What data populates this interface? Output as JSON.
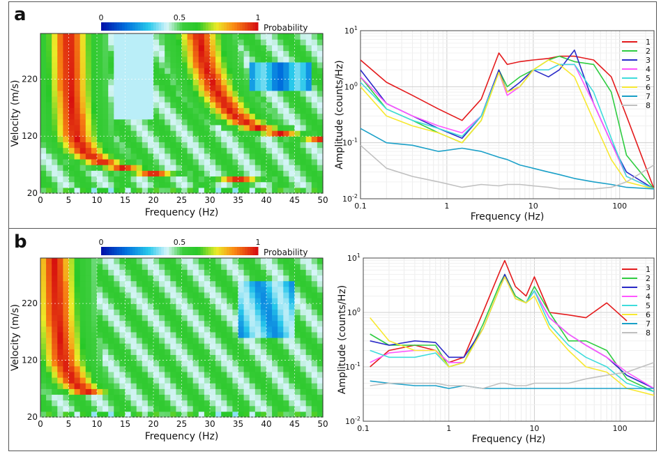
{
  "panels": [
    {
      "label": "a",
      "heatmap": {
        "colorbar": {
          "ticks": [
            "0",
            "0.5",
            "1"
          ],
          "title": "Probability"
        },
        "xlabel": "Frequency (Hz)",
        "ylabel": "Velocity (m/s)",
        "xticks": [
          "0",
          "5",
          "10",
          "15",
          "20",
          "25",
          "30",
          "35",
          "40",
          "45",
          "50"
        ],
        "yticks": [
          "20",
          "120",
          "220"
        ]
      },
      "spectrum": {
        "xlabel": "Frequency (Hz)",
        "ylabel": "Amplitude (counts/Hz)",
        "xticks": [
          "0.1",
          "1",
          "10",
          "100"
        ],
        "yticks": [
          "10-2",
          "10-1",
          "100",
          "101"
        ],
        "legend": [
          "1",
          "2",
          "3",
          "4",
          "5",
          "6",
          "7",
          "8"
        ]
      }
    },
    {
      "label": "b",
      "heatmap": {
        "colorbar": {
          "ticks": [
            "0",
            "0.5",
            "1"
          ],
          "title": "Probability"
        },
        "xlabel": "Frequency (Hz)",
        "ylabel": "Velocity (m/s)",
        "xticks": [
          "0",
          "5",
          "10",
          "15",
          "20",
          "25",
          "30",
          "35",
          "40",
          "45",
          "50"
        ],
        "yticks": [
          "20",
          "120",
          "220"
        ]
      },
      "spectrum": {
        "xlabel": "Frequency (Hz)",
        "ylabel": "Amplitude (counts/Hz)",
        "xticks": [
          "0.1",
          "1",
          "10",
          "100"
        ],
        "yticks": [
          "10-2",
          "10-1",
          "100",
          "101"
        ],
        "legend": [
          "1",
          "2",
          "3",
          "4",
          "5",
          "6",
          "7",
          "8"
        ]
      }
    }
  ],
  "chart_data": [
    {
      "type": "heatmap",
      "panel": "a",
      "xlabel": "Frequency (Hz)",
      "ylabel": "Velocity (m/s)",
      "xlim": [
        0,
        50
      ],
      "ylim": [
        20,
        300
      ],
      "colorbar_range": [
        0,
        1
      ],
      "colorbar_label": "Probability",
      "high_probability_ridges": [
        {
          "velocity": [
            300,
            200,
            120,
            90,
            70,
            55,
            45,
            40
          ],
          "frequency": [
            5,
            5.3,
            6.2,
            8,
            12,
            20,
            35,
            50
          ]
        },
        {
          "velocity": [
            300,
            250,
            200,
            160,
            140,
            130,
            120,
            115
          ],
          "frequency": [
            28,
            29,
            31,
            34,
            37,
            40,
            45,
            50
          ]
        }
      ]
    },
    {
      "type": "line",
      "panel": "a",
      "xlabel": "Frequency (Hz)",
      "ylabel": "Amplitude (counts/Hz)",
      "xscale": "log",
      "yscale": "log",
      "xlim": [
        0.1,
        250
      ],
      "ylim": [
        0.01,
        10
      ],
      "legend_position": "top-right",
      "x": [
        0.1,
        0.2,
        0.4,
        0.8,
        1.5,
        2.5,
        4,
        5,
        7,
        10,
        15,
        20,
        30,
        50,
        80,
        120,
        250
      ],
      "series": [
        {
          "name": "1",
          "color": "#e41a1c",
          "values": [
            3.0,
            1.2,
            0.7,
            0.4,
            0.25,
            0.6,
            4.0,
            2.5,
            2.8,
            3.0,
            3.2,
            3.5,
            3.5,
            3.0,
            1.5,
            0.3,
            0.015
          ]
        },
        {
          "name": "2",
          "color": "#2ecc40",
          "values": [
            1.5,
            0.4,
            0.25,
            0.15,
            0.1,
            0.25,
            2.0,
            1.0,
            1.5,
            2.0,
            3.0,
            3.5,
            2.8,
            2.5,
            0.8,
            0.06,
            0.015
          ]
        },
        {
          "name": "3",
          "color": "#2a2ac8",
          "values": [
            2.0,
            0.5,
            0.3,
            0.18,
            0.12,
            0.3,
            2.0,
            0.8,
            1.2,
            2.0,
            1.5,
            2.0,
            4.5,
            0.5,
            0.1,
            0.03,
            0.015
          ]
        },
        {
          "name": "4",
          "color": "#ff55ff",
          "values": [
            1.5,
            0.5,
            0.3,
            0.2,
            0.15,
            0.3,
            1.8,
            0.7,
            1.0,
            2.0,
            2.0,
            2.5,
            2.5,
            0.5,
            0.1,
            0.025,
            0.015
          ]
        },
        {
          "name": "5",
          "color": "#3fdcdc",
          "values": [
            1.2,
            0.4,
            0.25,
            0.18,
            0.13,
            0.3,
            1.8,
            0.8,
            1.0,
            2.0,
            2.0,
            2.5,
            2.5,
            0.8,
            0.12,
            0.025,
            0.015
          ]
        },
        {
          "name": "6",
          "color": "#f7e830",
          "values": [
            1.0,
            0.3,
            0.2,
            0.15,
            0.1,
            0.25,
            1.8,
            0.8,
            1.0,
            2.0,
            3.0,
            2.5,
            1.5,
            0.25,
            0.05,
            0.02,
            0.015
          ]
        },
        {
          "name": "7",
          "color": "#1aa0c8",
          "values": [
            0.18,
            0.1,
            0.09,
            0.07,
            0.08,
            0.07,
            0.055,
            0.05,
            0.04,
            0.035,
            0.03,
            0.027,
            0.023,
            0.02,
            0.018,
            0.016,
            0.015
          ]
        },
        {
          "name": "8",
          "color": "#c0c0c0",
          "values": [
            0.09,
            0.035,
            0.025,
            0.02,
            0.016,
            0.018,
            0.017,
            0.018,
            0.018,
            0.017,
            0.016,
            0.015,
            0.015,
            0.015,
            0.016,
            0.02,
            0.04
          ]
        }
      ]
    },
    {
      "type": "heatmap",
      "panel": "b",
      "xlabel": "Frequency (Hz)",
      "ylabel": "Velocity (m/s)",
      "xlim": [
        0,
        50
      ],
      "ylim": [
        20,
        300
      ],
      "colorbar_range": [
        0,
        1
      ],
      "colorbar_label": "Probability",
      "high_probability_ridges": [
        {
          "velocity": [
            300,
            200,
            120,
            80,
            60
          ],
          "frequency": [
            2.5,
            3,
            4,
            6,
            9
          ]
        },
        {
          "velocity": [
            70,
            75,
            80,
            85,
            88
          ],
          "frequency": [
            30,
            34,
            38,
            42,
            50
          ]
        }
      ]
    },
    {
      "type": "line",
      "panel": "b",
      "xlabel": "Frequency (Hz)",
      "ylabel": "Amplitude (counts/Hz)",
      "xscale": "log",
      "yscale": "log",
      "xlim": [
        0.1,
        250
      ],
      "ylim": [
        0.01,
        10
      ],
      "legend_position": "top-right",
      "x": [
        0.12,
        0.2,
        0.4,
        0.7,
        1.0,
        1.5,
        2.5,
        4,
        4.5,
        6,
        8,
        10,
        15,
        25,
        40,
        70,
        120,
        250
      ],
      "series": [
        {
          "name": "1",
          "color": "#e41a1c",
          "values": [
            0.1,
            0.2,
            0.25,
            0.2,
            0.12,
            0.15,
            1.0,
            6.0,
            9.0,
            3.0,
            2.0,
            4.5,
            1.0,
            0.9,
            0.8,
            1.5,
            0.7,
            null
          ]
        },
        {
          "name": "2",
          "color": "#2ecc40",
          "values": [
            0.4,
            0.25,
            0.25,
            0.25,
            0.1,
            0.12,
            0.6,
            3.5,
            5.0,
            2.0,
            1.5,
            3.0,
            1.0,
            0.3,
            0.3,
            0.2,
            0.06,
            0.035
          ]
        },
        {
          "name": "3",
          "color": "#2a2ac8",
          "values": [
            0.3,
            0.25,
            0.3,
            0.28,
            0.15,
            0.15,
            0.5,
            3.0,
            5.0,
            1.8,
            1.5,
            2.5,
            0.8,
            0.4,
            0.25,
            0.15,
            0.07,
            0.04
          ]
        },
        {
          "name": "4",
          "color": "#ff55ff",
          "values": [
            0.12,
            0.18,
            0.2,
            0.2,
            0.12,
            0.12,
            0.5,
            3.0,
            4.5,
            1.8,
            1.5,
            2.5,
            0.8,
            0.4,
            0.25,
            0.15,
            0.08,
            0.04
          ]
        },
        {
          "name": "5",
          "color": "#3fdcdc",
          "values": [
            0.2,
            0.15,
            0.15,
            0.18,
            0.1,
            0.12,
            0.5,
            3.0,
            4.5,
            1.8,
            1.5,
            2.5,
            0.6,
            0.25,
            0.15,
            0.1,
            0.05,
            0.035
          ]
        },
        {
          "name": "6",
          "color": "#f7e830",
          "values": [
            0.8,
            0.3,
            0.2,
            0.2,
            0.1,
            0.12,
            0.5,
            3.0,
            4.5,
            1.8,
            1.5,
            2.0,
            0.5,
            0.2,
            0.1,
            0.08,
            0.04,
            0.03
          ]
        },
        {
          "name": "7",
          "color": "#1aa0c8",
          "values": [
            0.055,
            0.05,
            0.045,
            0.045,
            0.04,
            0.045,
            0.04,
            0.04,
            0.04,
            0.04,
            0.04,
            0.04,
            0.04,
            0.04,
            0.04,
            0.04,
            0.04,
            0.04
          ]
        },
        {
          "name": "8",
          "color": "#c0c0c0",
          "values": [
            0.045,
            0.05,
            0.05,
            0.05,
            0.045,
            0.045,
            0.04,
            0.05,
            0.05,
            0.045,
            0.045,
            0.05,
            0.05,
            0.05,
            0.06,
            0.07,
            0.08,
            0.12
          ]
        }
      ]
    }
  ]
}
